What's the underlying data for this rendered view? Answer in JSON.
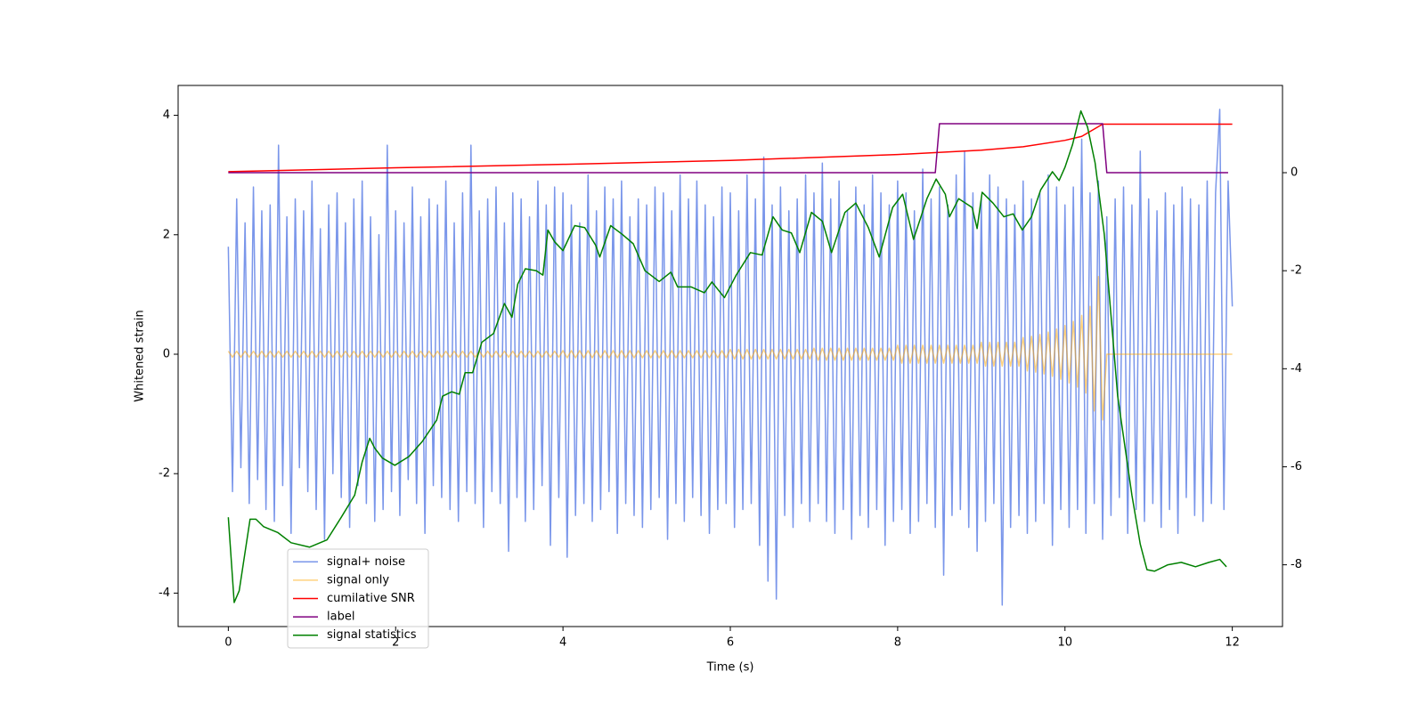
{
  "chart_data": {
    "type": "line",
    "xlabel": "Time (s)",
    "ylabel": "Whitened strain",
    "xlim": [
      -0.6,
      12.6
    ],
    "xticks": [
      0,
      2,
      4,
      6,
      8,
      10,
      12
    ],
    "ylim": [
      -4.56,
      4.5
    ],
    "yticks": [
      -4,
      -2,
      0,
      2,
      4
    ],
    "y2lim": [
      -9.26,
      1.78
    ],
    "y2ticks": [
      -8,
      -6,
      -4,
      -2,
      0
    ],
    "x": [
      0,
      0.05,
      0.1,
      0.15,
      0.2,
      0.25,
      0.3,
      0.35,
      0.4,
      0.45,
      0.5,
      0.55,
      0.6,
      0.65,
      0.7,
      0.75,
      0.8,
      0.85,
      0.9,
      0.95,
      1,
      1.05,
      1.1,
      1.15,
      1.2,
      1.25,
      1.3,
      1.35,
      1.4,
      1.45,
      1.5,
      1.55,
      1.6,
      1.65,
      1.7,
      1.75,
      1.8,
      1.85,
      1.9,
      1.95,
      2,
      2.05,
      2.1,
      2.15,
      2.2,
      2.25,
      2.3,
      2.35,
      2.4,
      2.45,
      2.5,
      2.55,
      2.6,
      2.65,
      2.7,
      2.75,
      2.8,
      2.85,
      2.9,
      2.95,
      3,
      3.05,
      3.1,
      3.15,
      3.2,
      3.25,
      3.3,
      3.35,
      3.4,
      3.45,
      3.5,
      3.55,
      3.6,
      3.65,
      3.7,
      3.75,
      3.8,
      3.85,
      3.9,
      3.95,
      4,
      4.05,
      4.1,
      4.15,
      4.2,
      4.25,
      4.3,
      4.35,
      4.4,
      4.45,
      4.5,
      4.55,
      4.6,
      4.65,
      4.7,
      4.75,
      4.8,
      4.85,
      4.9,
      4.95,
      5,
      5.05,
      5.1,
      5.15,
      5.2,
      5.25,
      5.3,
      5.35,
      5.4,
      5.45,
      5.5,
      5.55,
      5.6,
      5.65,
      5.7,
      5.75,
      5.8,
      5.85,
      5.9,
      5.95,
      6,
      6.05,
      6.1,
      6.15,
      6.2,
      6.25,
      6.3,
      6.35,
      6.4,
      6.45,
      6.5,
      6.55,
      6.6,
      6.65,
      6.7,
      6.75,
      6.8,
      6.85,
      6.9,
      6.95,
      7,
      7.05,
      7.1,
      7.15,
      7.2,
      7.25,
      7.3,
      7.35,
      7.4,
      7.45,
      7.5,
      7.55,
      7.6,
      7.65,
      7.7,
      7.75,
      7.8,
      7.85,
      7.9,
      7.95,
      8,
      8.05,
      8.1,
      8.15,
      8.2,
      8.25,
      8.3,
      8.35,
      8.4,
      8.45,
      8.5,
      8.55,
      8.6,
      8.65,
      8.7,
      8.75,
      8.8,
      8.85,
      8.9,
      8.95,
      9,
      9.05,
      9.1,
      9.15,
      9.2,
      9.25,
      9.3,
      9.35,
      9.4,
      9.45,
      9.5,
      9.55,
      9.6,
      9.65,
      9.7,
      9.75,
      9.8,
      9.85,
      9.9,
      9.95,
      10,
      10.05,
      10.1,
      10.15,
      10.2,
      10.25,
      10.3,
      10.35,
      10.4,
      10.45,
      10.5,
      10.55,
      10.6,
      10.65,
      10.7,
      10.75,
      10.8,
      10.85,
      10.9,
      10.95,
      11,
      11.05,
      11.1,
      11.15,
      11.2,
      11.25,
      11.3,
      11.35,
      11.4,
      11.45,
      11.5,
      11.55,
      11.6,
      11.65,
      11.7,
      11.75,
      11.8,
      11.85,
      11.9,
      11.95,
      12
    ],
    "series": [
      {
        "name": "signal+ noise",
        "color": "#4169e1",
        "alpha": 0.7,
        "axis": "y",
        "values": [
          1.8,
          -2.3,
          2.6,
          -1.9,
          2.2,
          -2.5,
          2.8,
          -2.1,
          2.4,
          -2.6,
          2.5,
          -2.8,
          3.5,
          -2.2,
          2.3,
          -3.0,
          2.6,
          -1.9,
          2.4,
          -2.3,
          2.9,
          -2.6,
          2.1,
          -3.1,
          2.5,
          -2.0,
          2.7,
          -2.4,
          2.2,
          -2.9,
          2.6,
          -2.2,
          2.9,
          -2.5,
          2.3,
          -2.8,
          2.0,
          -2.6,
          3.5,
          -2.3,
          2.4,
          -2.7,
          2.2,
          -2.1,
          2.8,
          -2.5,
          2.3,
          -3.0,
          2.6,
          -2.2,
          2.5,
          -2.4,
          2.9,
          -2.6,
          2.2,
          -2.8,
          2.7,
          -2.3,
          3.5,
          -2.5,
          2.4,
          -2.9,
          2.6,
          -2.3,
          2.8,
          -2.5,
          2.2,
          -3.3,
          2.7,
          -2.4,
          2.6,
          -2.8,
          2.3,
          -2.6,
          2.9,
          -2.2,
          2.5,
          -3.2,
          2.8,
          -2.4,
          2.7,
          -3.4,
          2.5,
          -2.7,
          2.2,
          -2.5,
          3.0,
          -2.8,
          2.4,
          -2.6,
          2.8,
          -2.3,
          2.6,
          -3.0,
          2.9,
          -2.5,
          2.3,
          -2.7,
          2.6,
          -2.9,
          2.5,
          -2.6,
          2.8,
          -2.4,
          2.7,
          -3.1,
          2.4,
          -2.5,
          3.0,
          -2.8,
          2.6,
          -2.4,
          2.9,
          -2.7,
          2.5,
          -3.0,
          2.3,
          -2.6,
          2.8,
          -2.5,
          2.7,
          -2.9,
          2.4,
          -2.6,
          3.0,
          -2.5,
          2.6,
          -3.2,
          3.3,
          -3.8,
          2.5,
          -4.1,
          2.8,
          -2.7,
          2.4,
          -2.9,
          2.6,
          -2.5,
          3.0,
          -2.8,
          2.7,
          -2.5,
          3.2,
          -2.8,
          2.6,
          -3.0,
          2.9,
          -2.6,
          2.4,
          -3.1,
          2.8,
          -2.7,
          2.5,
          -2.9,
          3.0,
          -2.6,
          2.7,
          -3.2,
          2.5,
          -2.8,
          2.9,
          -2.6,
          2.7,
          -3.0,
          2.4,
          -2.8,
          3.1,
          -2.5,
          2.6,
          -2.9,
          2.8,
          -3.7,
          2.5,
          -2.7,
          3.0,
          -2.6,
          3.4,
          -2.9,
          2.7,
          -3.3,
          2.6,
          -2.8,
          3.0,
          -2.5,
          2.8,
          -4.2,
          2.6,
          -2.9,
          2.5,
          -2.7,
          2.9,
          -3.0,
          2.6,
          -2.8,
          2.7,
          -2.5,
          3.0,
          -3.2,
          2.8,
          -2.6,
          2.5,
          -2.9,
          2.8,
          -2.6,
          3.6,
          -3.0,
          2.7,
          -2.5,
          2.9,
          -3.1,
          2.3,
          -2.7,
          2.6,
          -2.4,
          2.8,
          -3.0,
          2.5,
          -2.6,
          3.4,
          -2.8,
          2.6,
          -2.5,
          2.4,
          -2.9,
          2.7,
          -2.6,
          2.5,
          -3.0,
          2.8,
          -2.4,
          2.6,
          -2.7,
          2.5,
          -2.8,
          2.9,
          -2.5,
          2.7,
          4.1,
          -2.6,
          2.9,
          0.8
        ]
      },
      {
        "name": "signal only",
        "color": "#ffa500",
        "alpha": 0.5,
        "axis": "y",
        "values": [
          0.05,
          -0.05,
          0.05,
          -0.05,
          0.05,
          -0.05,
          0.05,
          -0.05,
          0.05,
          -0.05,
          0.05,
          -0.05,
          0.05,
          -0.05,
          0.05,
          -0.05,
          0.05,
          -0.05,
          0.05,
          -0.05,
          0.05,
          -0.05,
          0.05,
          -0.05,
          0.05,
          -0.05,
          0.05,
          -0.05,
          0.05,
          -0.05,
          0.05,
          -0.05,
          0.05,
          -0.05,
          0.05,
          -0.05,
          0.05,
          -0.05,
          0.05,
          -0.05,
          0.05,
          -0.05,
          0.05,
          -0.05,
          0.05,
          -0.05,
          0.05,
          -0.05,
          0.05,
          -0.05,
          0.05,
          -0.05,
          0.05,
          -0.05,
          0.05,
          -0.05,
          0.05,
          -0.05,
          0.05,
          -0.05,
          0.05,
          -0.05,
          0.05,
          -0.05,
          0.05,
          -0.05,
          0.05,
          -0.05,
          0.05,
          -0.05,
          0.05,
          -0.05,
          0.05,
          -0.05,
          0.05,
          -0.05,
          0.05,
          -0.05,
          0.05,
          -0.05,
          0.06,
          -0.06,
          0.06,
          -0.06,
          0.06,
          -0.06,
          0.06,
          -0.06,
          0.06,
          -0.06,
          0.06,
          -0.06,
          0.06,
          -0.06,
          0.06,
          -0.06,
          0.06,
          -0.06,
          0.06,
          -0.06,
          0.06,
          -0.06,
          0.06,
          -0.06,
          0.06,
          -0.06,
          0.06,
          -0.06,
          0.06,
          -0.06,
          0.06,
          -0.06,
          0.06,
          -0.06,
          0.06,
          -0.06,
          0.06,
          -0.06,
          0.06,
          -0.06,
          0.08,
          -0.08,
          0.08,
          -0.08,
          0.08,
          -0.08,
          0.08,
          -0.08,
          0.08,
          -0.08,
          0.08,
          -0.08,
          0.08,
          -0.08,
          0.08,
          -0.08,
          0.08,
          -0.08,
          0.08,
          -0.08,
          0.1,
          -0.1,
          0.1,
          -0.1,
          0.1,
          -0.1,
          0.1,
          -0.1,
          0.1,
          -0.1,
          0.1,
          -0.1,
          0.1,
          -0.1,
          0.1,
          -0.1,
          0.1,
          -0.1,
          0.1,
          -0.1,
          0.15,
          -0.15,
          0.15,
          -0.15,
          0.15,
          -0.15,
          0.15,
          -0.15,
          0.15,
          -0.15,
          0.15,
          -0.15,
          0.15,
          -0.15,
          0.15,
          -0.15,
          0.15,
          -0.15,
          0.15,
          -0.15,
          0.2,
          -0.2,
          0.2,
          -0.2,
          0.2,
          -0.2,
          0.2,
          -0.2,
          0.2,
          -0.2,
          0.28,
          -0.28,
          0.3,
          -0.3,
          0.33,
          -0.33,
          0.37,
          -0.37,
          0.42,
          -0.42,
          0.48,
          -0.48,
          0.55,
          -0.55,
          0.65,
          -0.65,
          0.8,
          -0.95,
          1.3,
          -1.1,
          0,
          0,
          0,
          0,
          0,
          0,
          0,
          0,
          0,
          0,
          0,
          0,
          0,
          0,
          0,
          0,
          0,
          0,
          0,
          0,
          0,
          0,
          0,
          0,
          0,
          0,
          0,
          0,
          0,
          0,
          0
        ]
      },
      {
        "name": "cumilative SNR",
        "color": "#ff0000",
        "axis": "y2",
        "x": [
          0,
          2,
          4,
          6,
          8,
          9,
          9.5,
          10,
          10.2,
          10.45,
          12
        ],
        "values": [
          0.02,
          0.1,
          0.17,
          0.25,
          0.37,
          0.46,
          0.53,
          0.66,
          0.74,
          0.99,
          0.99
        ]
      },
      {
        "name": "label",
        "color": "#800080",
        "axis": "y2",
        "x": [
          0,
          8.45,
          8.5,
          10.45,
          10.5,
          11.95
        ],
        "values": [
          0,
          0,
          1,
          1,
          0,
          0
        ]
      },
      {
        "name": "signal statistics",
        "color": "#008000",
        "axis": "y2",
        "x": [
          0,
          0.07,
          0.13,
          0.26,
          0.33,
          0.42,
          0.59,
          0.75,
          0.97,
          1.18,
          1.35,
          1.51,
          1.6,
          1.69,
          1.75,
          1.84,
          1.99,
          2.16,
          2.32,
          2.49,
          2.56,
          2.67,
          2.76,
          2.83,
          2.92,
          3.03,
          3.17,
          3.3,
          3.39,
          3.46,
          3.55,
          3.68,
          3.76,
          3.82,
          3.9,
          4.0,
          4.14,
          4.26,
          4.39,
          4.44,
          4.57,
          4.71,
          4.84,
          4.98,
          5.15,
          5.29,
          5.37,
          5.53,
          5.69,
          5.78,
          5.93,
          6.07,
          6.24,
          6.38,
          6.51,
          6.62,
          6.73,
          6.83,
          6.97,
          7.1,
          7.21,
          7.37,
          7.5,
          7.65,
          7.78,
          7.94,
          8.06,
          8.19,
          8.35,
          8.46,
          8.57,
          8.62,
          8.73,
          8.89,
          8.95,
          9.01,
          9.14,
          9.27,
          9.38,
          9.49,
          9.6,
          9.71,
          9.85,
          9.93,
          10.0,
          10.09,
          10.19,
          10.27,
          10.36,
          10.47,
          10.63,
          10.8,
          10.9,
          10.98,
          11.07,
          11.23,
          11.39,
          11.56,
          11.72,
          11.85,
          11.93
        ],
        "values": [
          -7.03,
          -8.77,
          -8.53,
          -7.07,
          -7.07,
          -7.22,
          -7.34,
          -7.55,
          -7.64,
          -7.49,
          -7.03,
          -6.58,
          -5.9,
          -5.42,
          -5.62,
          -5.82,
          -5.97,
          -5.79,
          -5.48,
          -5.05,
          -4.56,
          -4.47,
          -4.52,
          -4.08,
          -4.08,
          -3.46,
          -3.28,
          -2.67,
          -2.95,
          -2.27,
          -1.96,
          -2.0,
          -2.09,
          -1.17,
          -1.41,
          -1.59,
          -1.08,
          -1.12,
          -1.48,
          -1.72,
          -1.08,
          -1.26,
          -1.45,
          -2.0,
          -2.22,
          -2.03,
          -2.33,
          -2.33,
          -2.45,
          -2.23,
          -2.55,
          -2.09,
          -1.63,
          -1.68,
          -0.9,
          -1.17,
          -1.23,
          -1.63,
          -0.81,
          -0.99,
          -1.63,
          -0.81,
          -0.62,
          -1.12,
          -1.72,
          -0.71,
          -0.44,
          -1.36,
          -0.53,
          -0.13,
          -0.44,
          -0.9,
          -0.53,
          -0.71,
          -1.14,
          -0.4,
          -0.62,
          -0.9,
          -0.84,
          -1.17,
          -0.9,
          -0.35,
          0.02,
          -0.16,
          0.11,
          0.57,
          1.26,
          0.93,
          0.2,
          -1.26,
          -4.56,
          -6.58,
          -7.58,
          -8.1,
          -8.13,
          -8.0,
          -7.95,
          -8.04,
          -7.95,
          -7.89,
          -8.04
        ]
      }
    ]
  }
}
